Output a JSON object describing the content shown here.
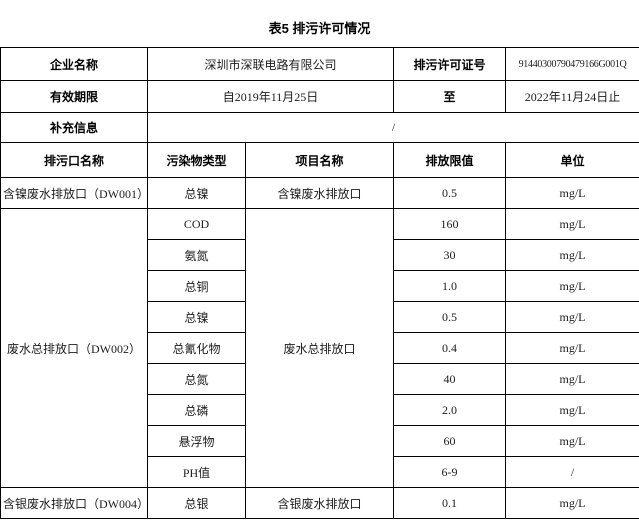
{
  "title": "表5 排污许可情况",
  "info": {
    "company_label": "企业名称",
    "company_value": "深圳市深联电路有限公司",
    "permit_no_label": "排污许可证号",
    "permit_no_value": "91440300790479166G001Q",
    "validity_label": "有效期限",
    "validity_from": "自2019年11月25日",
    "validity_to_label": "至",
    "validity_to_value": "2022年11月24日止",
    "supplement_label": "补充信息",
    "supplement_value": "/"
  },
  "table": {
    "headers": [
      "排污口名称",
      "污染物类型",
      "项目名称",
      "排放限值",
      "单位"
    ],
    "outlets": [
      {
        "name": "含镍废水排放口（DW001）",
        "project": "含镍废水排放口",
        "pollutants": [
          {
            "type": "总镍",
            "limit": "0.5",
            "unit": "mg/L"
          }
        ]
      },
      {
        "name": "废水总排放口（DW002）",
        "project": "废水总排放口",
        "pollutants": [
          {
            "type": "COD",
            "limit": "160",
            "unit": "mg/L"
          },
          {
            "type": "氨氮",
            "limit": "30",
            "unit": "mg/L"
          },
          {
            "type": "总铜",
            "limit": "1.0",
            "unit": "mg/L"
          },
          {
            "type": "总镍",
            "limit": "0.5",
            "unit": "mg/L"
          },
          {
            "type": "总氰化物",
            "limit": "0.4",
            "unit": "mg/L"
          },
          {
            "type": "总氮",
            "limit": "40",
            "unit": "mg/L"
          },
          {
            "type": "总磷",
            "limit": "2.0",
            "unit": "mg/L"
          },
          {
            "type": "悬浮物",
            "limit": "60",
            "unit": "mg/L"
          },
          {
            "type": "PH值",
            "limit": "6-9",
            "unit": "/"
          }
        ]
      },
      {
        "name": "含银废水排放口（DW004）",
        "project": "含银废水排放口",
        "pollutants": [
          {
            "type": "总银",
            "limit": "0.1",
            "unit": "mg/L"
          }
        ]
      }
    ]
  }
}
